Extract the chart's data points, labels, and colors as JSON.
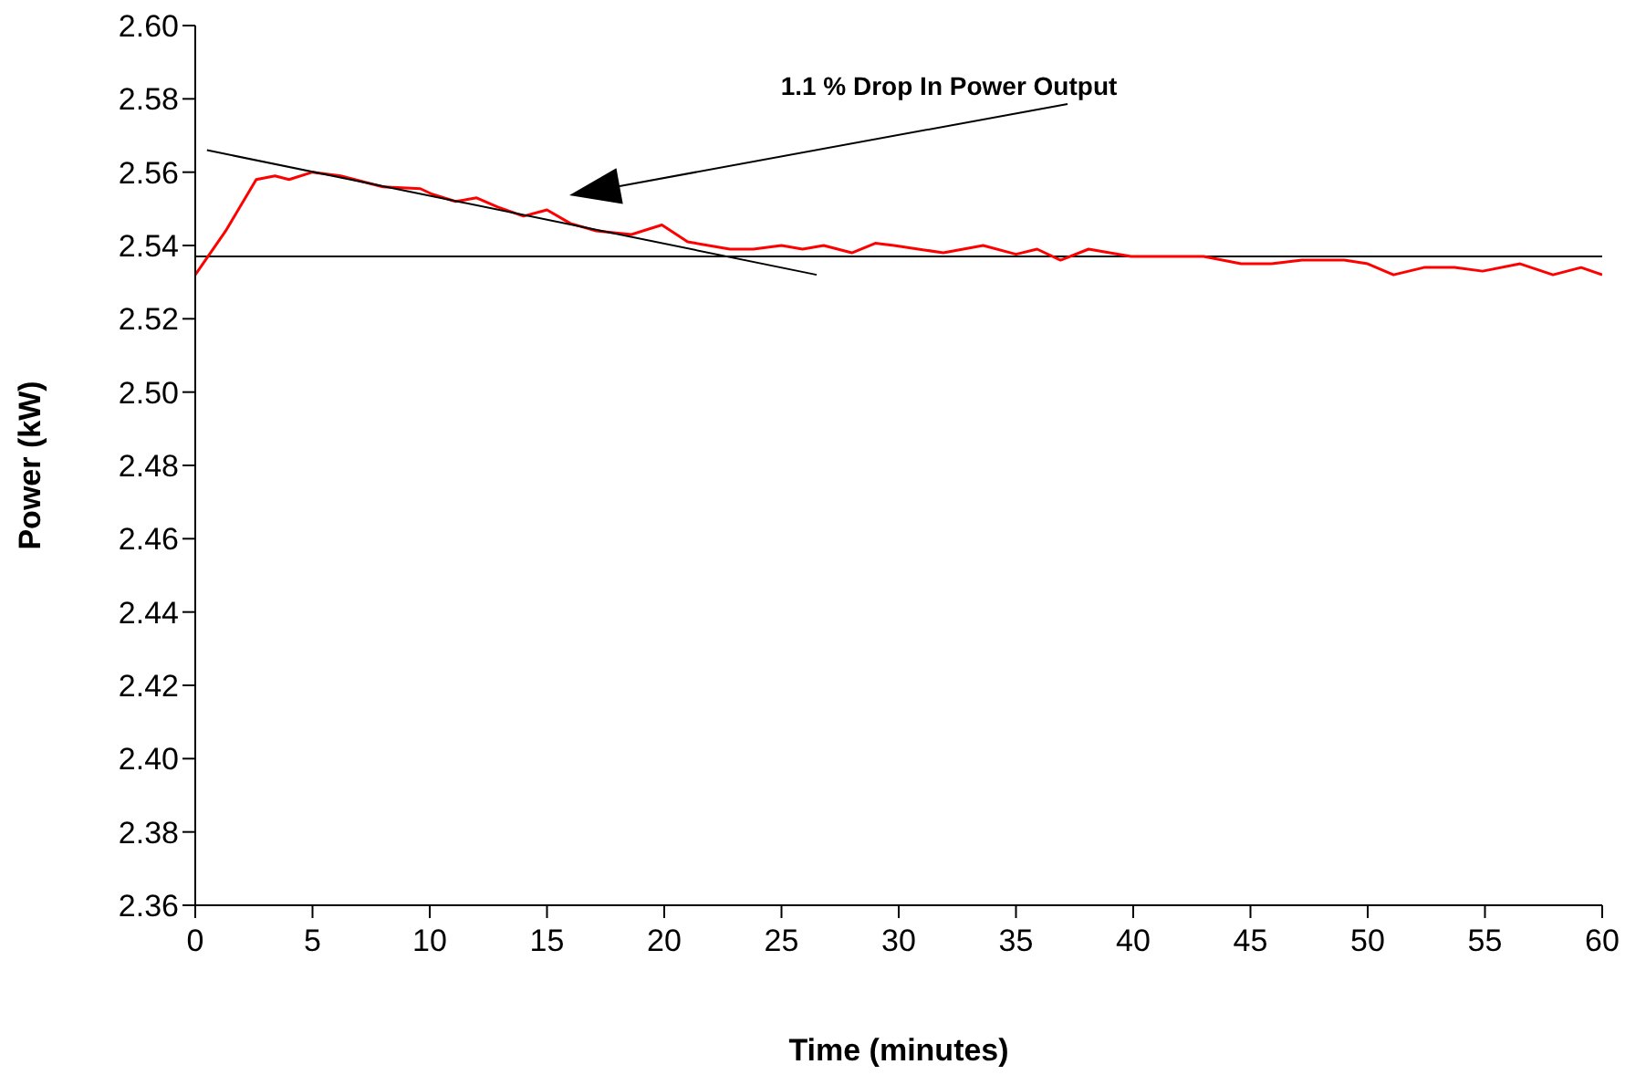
{
  "chart_data": {
    "type": "line",
    "xlabel": "Time (minutes)",
    "ylabel": "Power (kW)",
    "xlim": [
      0,
      60
    ],
    "xticks": [
      0,
      5,
      10,
      15,
      20,
      25,
      30,
      35,
      40,
      45,
      50,
      55,
      60
    ],
    "ylim": [
      2.36,
      2.6
    ],
    "yticks": [
      2.36,
      2.38,
      {
        "value": 2.4,
        "label": "2.40"
      },
      2.42,
      2.44,
      2.46,
      2.48,
      {
        "value": 2.5,
        "label": "2.50"
      },
      2.52,
      2.54,
      2.56,
      2.58,
      {
        "value": 2.6,
        "label": "2.60"
      }
    ],
    "grid": false,
    "legend": false,
    "marker": "none",
    "line_style": "solid",
    "series": [
      {
        "color": "#ff0000",
        "x": [
          0,
          1.3,
          2.6,
          3.4,
          4.0,
          5.0,
          6.2,
          8.0,
          9.6,
          10.1,
          11.1,
          12.0,
          12.9,
          14.0,
          15.0,
          16.0,
          17.1,
          18.6,
          19.9,
          21.0,
          22.8,
          23.8,
          25.0,
          25.9,
          26.8,
          28.0,
          29.0,
          29.8,
          31.9,
          33.6,
          35.0,
          35.9,
          36.9,
          38.1,
          39.9,
          41.5,
          43.0,
          44.6,
          45.9,
          47.2,
          49.0,
          50.0,
          51.1,
          52.4,
          53.7,
          54.9,
          56.5,
          57.9,
          59.1,
          60
        ],
        "values": [
          2.532,
          2.544,
          2.558,
          2.559,
          2.558,
          2.56,
          2.559,
          2.556,
          2.5555,
          2.554,
          2.552,
          2.553,
          2.5505,
          2.548,
          2.5497,
          2.546,
          2.544,
          2.543,
          2.5456,
          2.541,
          2.539,
          2.539,
          2.54,
          2.539,
          2.54,
          2.538,
          2.5406,
          2.54,
          2.538,
          2.54,
          2.5376,
          2.539,
          2.536,
          2.539,
          2.537,
          2.537,
          2.537,
          2.535,
          2.535,
          2.536,
          2.536,
          2.535,
          2.532,
          2.534,
          2.534,
          2.533,
          2.535,
          2.532,
          2.534,
          2.532
        ]
      },
      {
        "color": "#000000",
        "x": [
          0.5,
          26.5
        ],
        "values": [
          2.566,
          2.532
        ]
      }
    ],
    "ref_lines": [
      {
        "axis": "y",
        "value": 2.537,
        "color": "#000000"
      }
    ],
    "annotations": [
      "1.1 % Drop In Power Output"
    ]
  }
}
